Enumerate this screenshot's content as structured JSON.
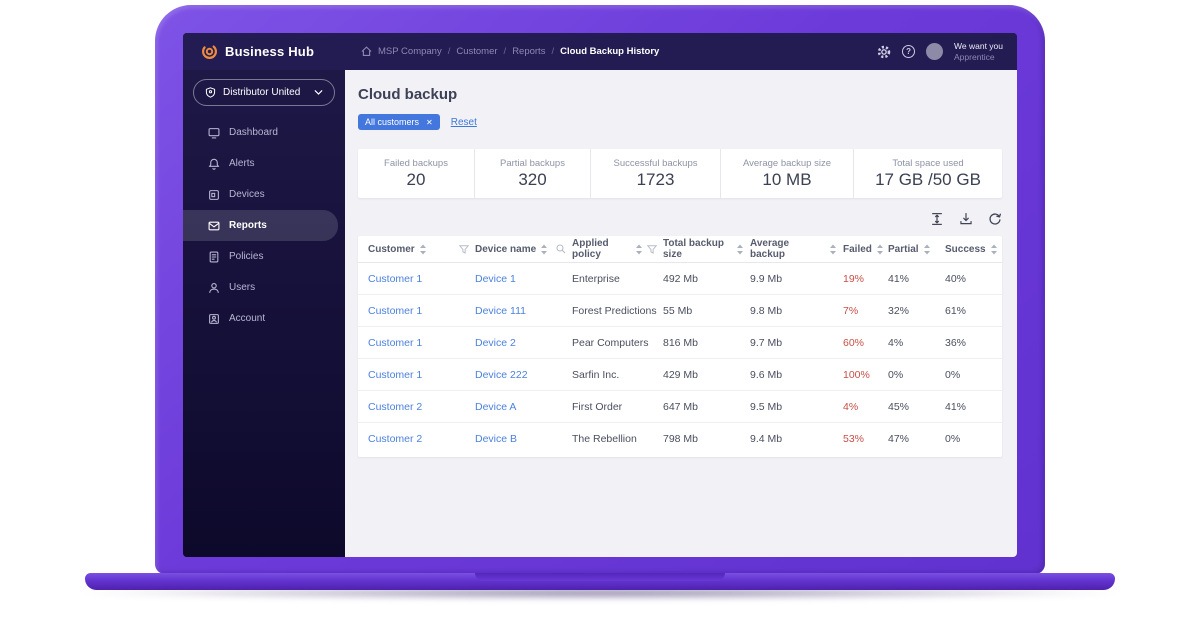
{
  "app": {
    "logo_text": "Business Hub"
  },
  "topbar": {
    "breadcrumb": [
      "MSP Company",
      "Customer",
      "Reports",
      "Cloud Backup History"
    ],
    "user_line1": "We want you",
    "user_line2": "Apprentice"
  },
  "sidebar": {
    "org_name": "Distributor United",
    "items": [
      {
        "label": "Dashboard",
        "icon": "dashboard",
        "active": false
      },
      {
        "label": "Alerts",
        "icon": "alerts",
        "active": false
      },
      {
        "label": "Devices",
        "icon": "devices",
        "active": false
      },
      {
        "label": "Reports",
        "icon": "reports",
        "active": true
      },
      {
        "label": "Policies",
        "icon": "policies",
        "active": false
      },
      {
        "label": "Users",
        "icon": "users",
        "active": false
      },
      {
        "label": "Account",
        "icon": "account",
        "active": false
      }
    ]
  },
  "main": {
    "title": "Cloud backup",
    "filter_chip": "All customers",
    "reset_label": "Reset",
    "stats": [
      {
        "label": "Failed backups",
        "value": "20"
      },
      {
        "label": "Partial backups",
        "value": "320"
      },
      {
        "label": "Successful backups",
        "value": "1723"
      },
      {
        "label": "Average backup size",
        "value": "10 MB"
      },
      {
        "label": "Total space used",
        "value": "17 GB /50 GB"
      }
    ],
    "table": {
      "columns": [
        {
          "label": "Customer",
          "sort": true,
          "extra": "filter"
        },
        {
          "label": "Device name",
          "sort": true,
          "extra": "search"
        },
        {
          "label": "Applied policy",
          "sort": true,
          "extra": "filter"
        },
        {
          "label": "Total backup size",
          "sort": true
        },
        {
          "label": "Average backup",
          "sort": true
        },
        {
          "label": "Failed",
          "sort": true
        },
        {
          "label": "Partial",
          "sort": true
        },
        {
          "label": "Success",
          "sort": true
        }
      ],
      "rows": [
        {
          "customer": "Customer 1",
          "device": "Device 1",
          "policy": "Enterprise",
          "total": "492 Mb",
          "average": "9.9 Mb",
          "failed": "19%",
          "partial": "41%",
          "success": "40%"
        },
        {
          "customer": "Customer 1",
          "device": "Device 111",
          "policy": "Forest Predictions",
          "total": "55 Mb",
          "average": "9.8 Mb",
          "failed": "7%",
          "partial": "32%",
          "success": "61%"
        },
        {
          "customer": "Customer 1",
          "device": "Device 2",
          "policy": "Pear Computers",
          "total": "816 Mb",
          "average": "9.7 Mb",
          "failed": "60%",
          "partial": "4%",
          "success": "36%"
        },
        {
          "customer": "Customer 1",
          "device": "Device 222",
          "policy": "Sarfin Inc.",
          "total": "429 Mb",
          "average": "9.6 Mb",
          "failed": "100%",
          "partial": "0%",
          "success": "0%"
        },
        {
          "customer": "Customer 2",
          "device": "Device A",
          "policy": "First Order",
          "total": "647 Mb",
          "average": "9.5 Mb",
          "failed": "4%",
          "partial": "45%",
          "success": "41%"
        },
        {
          "customer": "Customer 2",
          "device": "Device B",
          "policy": "The Rebellion",
          "total": "798 Mb",
          "average": "9.4 Mb",
          "failed": "53%",
          "partial": "47%",
          "success": "0%"
        }
      ]
    }
  },
  "colors": {
    "accent_blue": "#4377dd",
    "link_blue": "#4c82dd",
    "failed_red": "#c65048",
    "laptop_purple": "#6b3ad9",
    "topbar_navy": "#231c52",
    "logo_orange": "#ee8a3e"
  }
}
